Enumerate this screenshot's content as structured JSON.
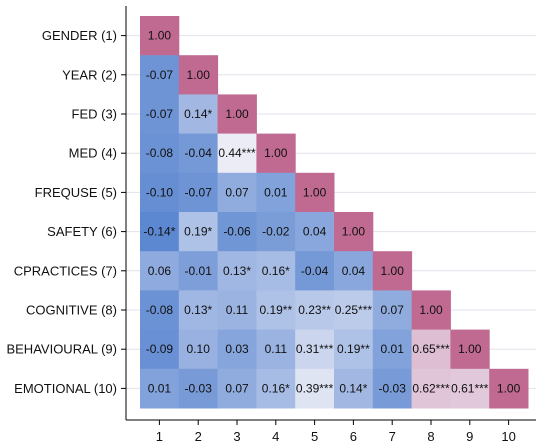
{
  "chart_data": {
    "type": "heatmap",
    "title": "",
    "xlabel": "",
    "ylabel": "",
    "row_labels": [
      "GENDER (1)",
      "YEAR (2)",
      "FED (3)",
      "MED (4)",
      "FREQUSE (5)",
      "SAFETY (6)",
      "CPRACTICES (7)",
      "COGNITIVE (8)",
      "BEHAVIOURAL (9)",
      "EMOTIONAL (10)"
    ],
    "col_labels": [
      "1",
      "2",
      "3",
      "4",
      "5",
      "6",
      "7",
      "8",
      "9",
      "10"
    ],
    "values": [
      [
        1.0
      ],
      [
        -0.07,
        1.0
      ],
      [
        -0.07,
        0.14,
        1.0
      ],
      [
        -0.08,
        -0.04,
        0.44,
        1.0
      ],
      [
        -0.1,
        -0.07,
        0.07,
        0.01,
        1.0
      ],
      [
        -0.14,
        0.19,
        -0.06,
        -0.02,
        0.04,
        1.0
      ],
      [
        0.06,
        -0.01,
        0.13,
        0.16,
        -0.04,
        0.04,
        1.0
      ],
      [
        -0.08,
        0.13,
        0.11,
        0.19,
        0.23,
        0.25,
        0.07,
        1.0
      ],
      [
        -0.09,
        0.1,
        0.03,
        0.11,
        0.31,
        0.19,
        0.01,
        0.65,
        1.0
      ],
      [
        0.01,
        -0.03,
        0.07,
        0.16,
        0.39,
        0.14,
        -0.03,
        0.62,
        0.61,
        1.0
      ]
    ],
    "labels": [
      [
        "1.00"
      ],
      [
        "-0.07",
        "1.00"
      ],
      [
        "-0.07",
        "0.14*",
        "1.00"
      ],
      [
        "-0.08",
        "-0.04",
        "0.44***",
        "1.00"
      ],
      [
        "-0.10",
        "-0.07",
        "0.07",
        "0.01",
        "1.00"
      ],
      [
        "-0.14*",
        "0.19*",
        "-0.06",
        "-0.02",
        "0.04",
        "1.00"
      ],
      [
        "0.06",
        "-0.01",
        "0.13*",
        "0.16*",
        "-0.04",
        "0.04",
        "1.00"
      ],
      [
        "-0.08",
        "0.13*",
        "0.11",
        "0.19**",
        "0.23**",
        "0.25***",
        "0.07",
        "1.00"
      ],
      [
        "-0.09",
        "0.10",
        "0.03",
        "0.11",
        "0.31***",
        "0.19**",
        "0.01",
        "0.65***",
        "1.00"
      ],
      [
        "0.01",
        "-0.03",
        "0.07",
        "0.16*",
        "0.39***",
        "0.14*",
        "-0.03",
        "0.62***",
        "0.61***",
        "1.00"
      ]
    ],
    "colors": {
      "negative": "#5a86d0",
      "neutral": "#eeeef7",
      "positive": "#c06a92",
      "grid": "#e2e3ec",
      "axis": "#000000",
      "text": "#111111"
    },
    "color_range": [
      -0.15,
      1.0
    ],
    "grid": true
  }
}
